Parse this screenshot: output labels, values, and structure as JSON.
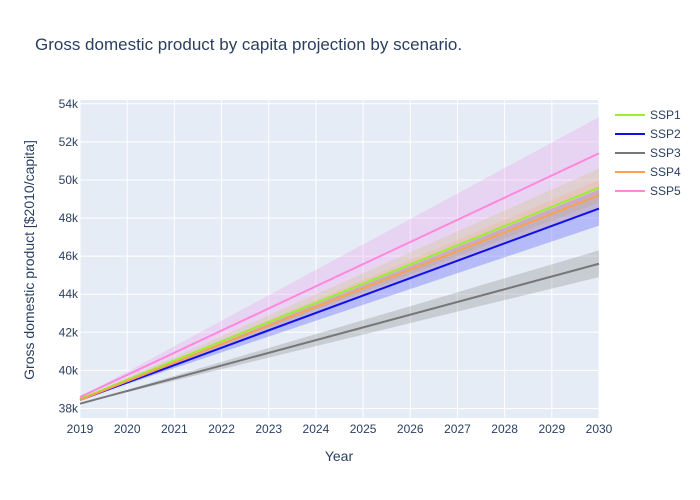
{
  "chart_data": {
    "type": "line",
    "title": "Gross domestic product by capita projection by scenario.",
    "xlabel": "Year",
    "ylabel": "Gross domestic product [$2010/capita]",
    "xlim": [
      2019,
      2030
    ],
    "ylim": [
      37500,
      54200
    ],
    "x_ticks": [
      2019,
      2020,
      2021,
      2022,
      2023,
      2024,
      2025,
      2026,
      2027,
      2028,
      2029,
      2030
    ],
    "x_tick_labels": [
      "2019",
      "2020",
      "2021",
      "2022",
      "2023",
      "2024",
      "2025",
      "2026",
      "2027",
      "2028",
      "2029",
      "2030"
    ],
    "y_ticks": [
      38000,
      40000,
      42000,
      44000,
      46000,
      48000,
      50000,
      52000,
      54000
    ],
    "y_tick_labels": [
      "38k",
      "40k",
      "42k",
      "44k",
      "46k",
      "48k",
      "50k",
      "52k",
      "54k"
    ],
    "grid": true,
    "legend_position": "right",
    "background": "#e5ecf6",
    "series": [
      {
        "name": "SSP1",
        "color": "#99ee33",
        "fill": "rgba(200,220,120,0.35)",
        "x": [
          2019,
          2030
        ],
        "y": [
          38500,
          49600
        ],
        "lower": [
          38500,
          48800
        ],
        "upper": [
          38500,
          50600
        ]
      },
      {
        "name": "SSP2",
        "color": "#1010ee",
        "fill": "rgba(70,70,255,0.30)",
        "x": [
          2019,
          2030
        ],
        "y": [
          38450,
          48500
        ],
        "lower": [
          38450,
          47600
        ],
        "upper": [
          38450,
          49500
        ]
      },
      {
        "name": "SSP3",
        "color": "#777777",
        "fill": "rgba(140,140,140,0.32)",
        "x": [
          2019,
          2030
        ],
        "y": [
          38250,
          45600
        ],
        "lower": [
          38250,
          44900
        ],
        "upper": [
          38250,
          46300
        ]
      },
      {
        "name": "SSP4",
        "color": "#ffa050",
        "fill": "rgba(255,170,90,0.22)",
        "x": [
          2019,
          2030
        ],
        "y": [
          38450,
          49200
        ],
        "lower": [
          38450,
          48500
        ],
        "upper": [
          38450,
          50000
        ]
      },
      {
        "name": "SSP5",
        "color": "#ff88dd",
        "fill": "rgba(240,140,230,0.25)",
        "x": [
          2019,
          2030
        ],
        "y": [
          38600,
          51400
        ],
        "lower": [
          38600,
          49300
        ],
        "upper": [
          38600,
          53300
        ]
      }
    ]
  }
}
